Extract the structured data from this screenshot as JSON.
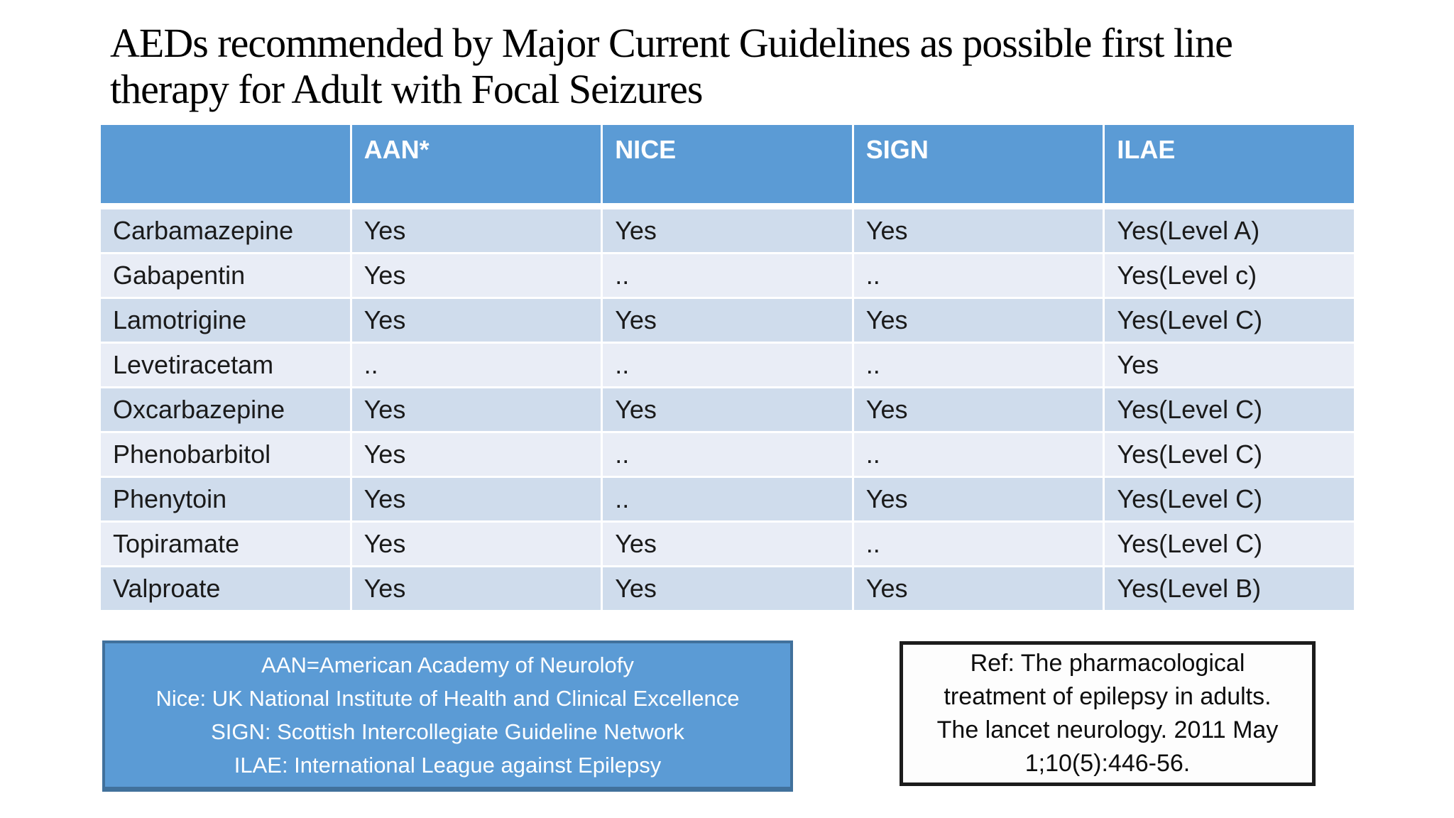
{
  "slide": {
    "background_color": "#ffffff"
  },
  "title": {
    "line1": "AEDs recommended by Major Current Guidelines as possible first line",
    "line2": "therapy for Adult with Focal Seizures"
  },
  "table": {
    "columns": [
      "",
      "AAN*",
      "NICE",
      "SIGN",
      "ILAE"
    ],
    "rows": [
      {
        "drug": "Carbamazepine",
        "values": [
          "Yes",
          "Yes",
          "Yes",
          "Yes(Level A)"
        ]
      },
      {
        "drug": "Gabapentin",
        "values": [
          "Yes",
          "..",
          "..",
          "Yes(Level c)"
        ]
      },
      {
        "drug": "Lamotrigine",
        "values": [
          "Yes",
          "Yes",
          "Yes",
          "Yes(Level C)"
        ]
      },
      {
        "drug": "Levetiracetam",
        "values": [
          "..",
          "..",
          "..",
          "Yes"
        ]
      },
      {
        "drug": "Oxcarbazepine",
        "values": [
          "Yes",
          "Yes",
          "Yes",
          "Yes(Level C)"
        ]
      },
      {
        "drug": "Phenobarbitol",
        "values": [
          "Yes",
          "..",
          "..",
          "Yes(Level C)"
        ]
      },
      {
        "drug": "Phenytoin",
        "values": [
          "Yes",
          "..",
          "Yes",
          "Yes(Level C)"
        ]
      },
      {
        "drug": "Topiramate",
        "values": [
          "Yes",
          "Yes",
          "..",
          "Yes(Level C)"
        ]
      },
      {
        "drug": "Valproate",
        "values": [
          "Yes",
          "Yes",
          "Yes",
          "Yes(Level B)"
        ]
      }
    ]
  },
  "legend": {
    "lines": [
      "AAN=American Academy of Neurolofy",
      "Nice: UK National Institute of Health and Clinical Excellence",
      "SIGN: Scottish Intercollegiate Guideline Network",
      "ILAE: International League against Epilepsy"
    ]
  },
  "reference": {
    "text": "Ref: The pharmacological treatment of epilepsy in adults. The lancet neurology. 2011 May 1;10(5):446-56."
  },
  "colors": {
    "header_blue": "#5B9BD5",
    "row_dark": "#CFDCEC",
    "row_light": "#E9EDF6",
    "legend_fill": "#5B9BD5",
    "legend_border": "#41719C",
    "reference_border": "#1c1c1c",
    "title_text": "#000000",
    "header_text": "#ffffff",
    "body_text": "#1a1a1a"
  }
}
